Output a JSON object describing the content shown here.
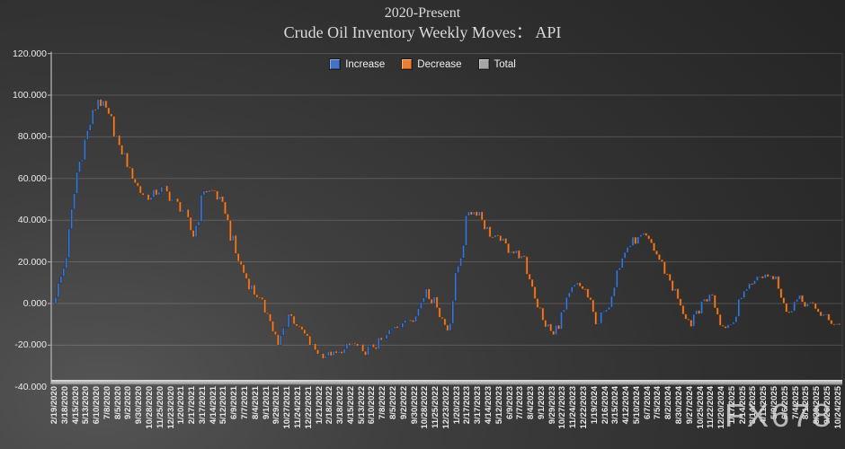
{
  "title": {
    "line1": "2020-Present",
    "line2": "Crude Oil Inventory Weekly Moves： API"
  },
  "legend": [
    {
      "label": "Increase",
      "color": "#4472C4"
    },
    {
      "label": "Decrease",
      "color": "#ED7D31"
    },
    {
      "label": "Total",
      "color": "#A5A5A5"
    }
  ],
  "watermark": "FX678",
  "chart_data": {
    "type": "bar",
    "subtype": "waterfall",
    "title": "2020-Present Crude Oil Inventory Weekly Moves： API",
    "legend_entries": [
      "Increase",
      "Decrease",
      "Total"
    ],
    "legend_position": "top-center",
    "grid": true,
    "ylim": [
      -40,
      120
    ],
    "yticks": [
      120,
      100,
      80,
      60,
      40,
      20,
      0,
      -20,
      -40
    ],
    "ytick_labels": [
      "120.000",
      "100.000",
      "80.000",
      "60.000",
      "40.000",
      "20.000",
      "0.000",
      "-20.000",
      "-40.000"
    ],
    "weeks_per_tick": 4,
    "start_value": 0,
    "x_tick_labels": [
      "2/19/2020",
      "3/18/2020",
      "4/15/2020",
      "5/13/2020",
      "6/10/2020",
      "7/8/2020",
      "8/5/2020",
      "9/2/2020",
      "9/30/2020",
      "10/28/2020",
      "11/25/2020",
      "12/23/2020",
      "1/20/2021",
      "2/17/2021",
      "3/17/2021",
      "4/14/2021",
      "5/12/2021",
      "6/9/2021",
      "7/7/2021",
      "8/4/2021",
      "9/1/2021",
      "9/29/2021",
      "10/27/2021",
      "11/24/2021",
      "12/22/2021",
      "1/21/2022",
      "2/18/2022",
      "3/18/2022",
      "4/15/2022",
      "5/13/2022",
      "6/10/2022",
      "7/8/2022",
      "8/5/2022",
      "9/2/2022",
      "9/30/2022",
      "10/28/2022",
      "11/25/2022",
      "12/23/2022",
      "1/20/2023",
      "2/17/2023",
      "3/17/2023",
      "4/14/2023",
      "5/12/2023",
      "6/9/2023",
      "7/7/2023",
      "8/4/2023",
      "9/1/2023",
      "9/29/2023",
      "10/27/2023",
      "11/24/2023",
      "12/22/2023",
      "1/19/2024",
      "2/16/2024",
      "3/15/2024",
      "4/12/2024",
      "5/10/2024",
      "6/7/2024",
      "7/5/2024",
      "8/2/2024",
      "8/30/2024",
      "9/27/2024",
      "10/25/2024",
      "11/22/2024",
      "12/20/2024",
      "1/17/2025",
      "2/14/2025",
      "3/14/2025",
      "4/11/2025",
      "5/9/2025",
      "6/6/2025",
      "7/4/2025",
      "8/1/2025",
      "8/29/2025",
      "9/26/2025",
      "10/24/2025"
    ],
    "cumulative_at_ticks": [
      3,
      22,
      63,
      83,
      98,
      91,
      76,
      65,
      53,
      51,
      56,
      50,
      45,
      32,
      54,
      54,
      43,
      24,
      12,
      3,
      -5,
      -20,
      -5,
      -11,
      -20,
      -24,
      -25,
      -24,
      -19,
      -23,
      -21,
      -17,
      -11,
      -8,
      -6,
      7,
      -2,
      -13,
      18,
      44,
      44,
      32,
      30,
      25,
      23,
      8,
      -8,
      -15,
      -3,
      9,
      7,
      -10,
      -3,
      16,
      27,
      32,
      31,
      21,
      11,
      -1,
      -11,
      1,
      4,
      -11,
      -9,
      6,
      11,
      14,
      13,
      -4,
      2,
      0,
      -4,
      -8,
      -10
    ],
    "series_colors": {
      "increase": "#4472C4",
      "decrease": "#ED7D31",
      "total": "#A5A5A5"
    }
  }
}
